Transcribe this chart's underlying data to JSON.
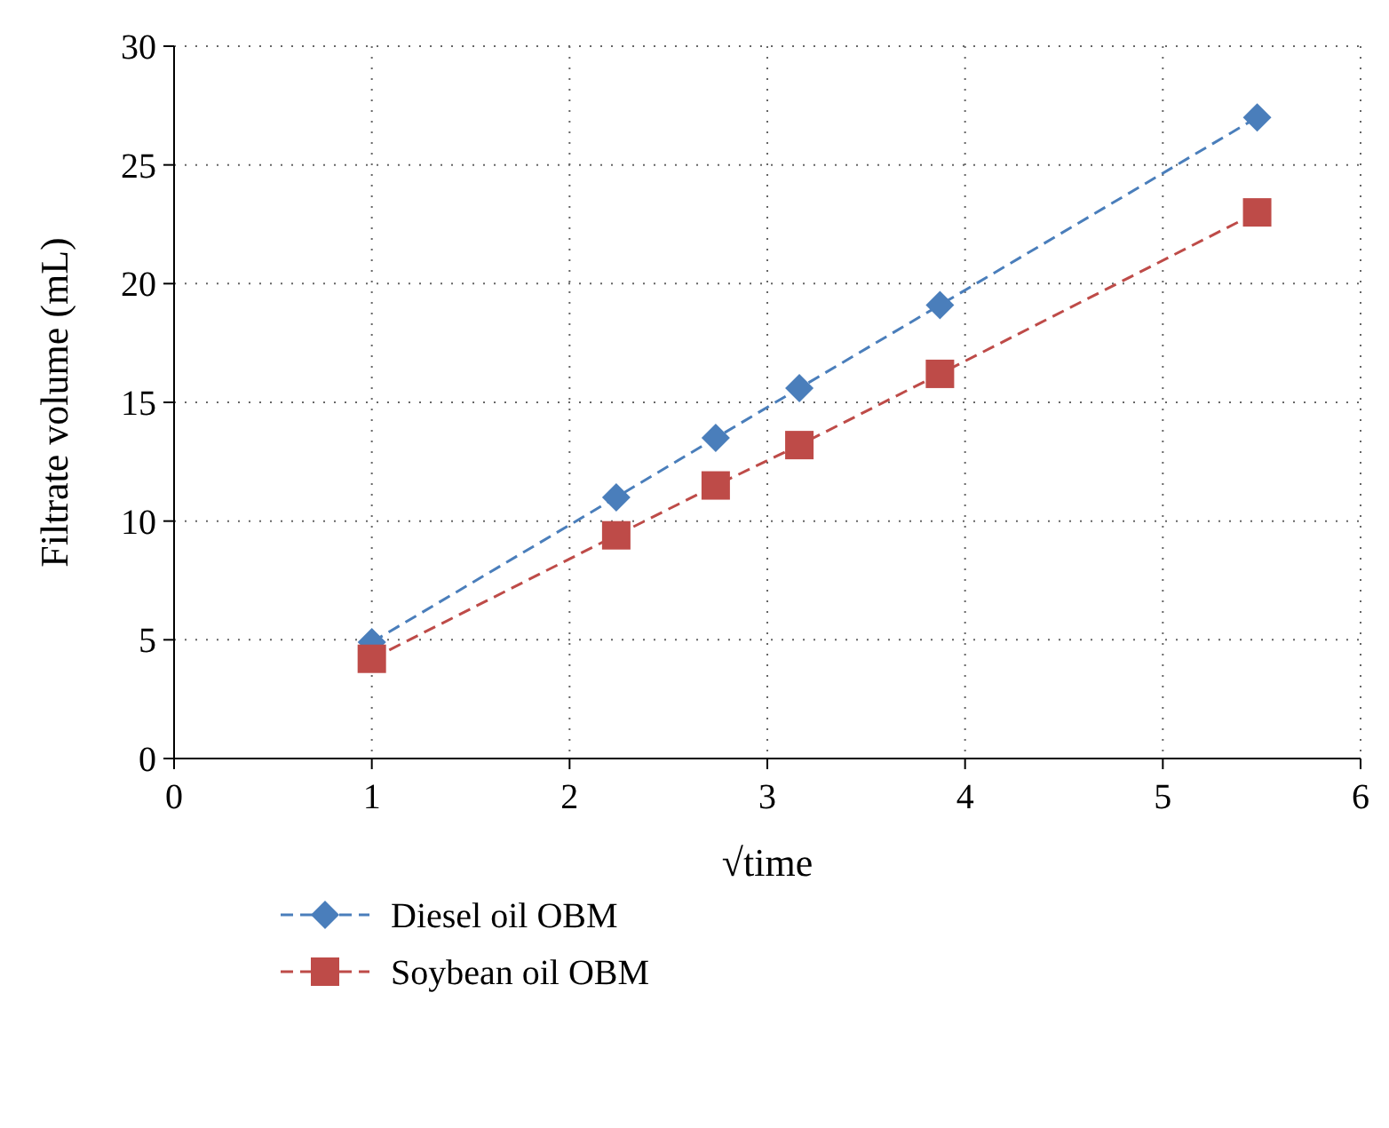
{
  "chart_data": {
    "type": "line",
    "xlabel": "√time",
    "ylabel": "Filtrate volume (mL)",
    "x": [
      1,
      2.236,
      2.739,
      3.162,
      3.873,
      5.477
    ],
    "series": [
      {
        "name": "Diesel oil OBM",
        "color": "#4a7ebb",
        "values": [
          4.9,
          11,
          13.5,
          15.6,
          19.1,
          27
        ],
        "marker": "diamond",
        "line_style": "dashed"
      },
      {
        "name": "Soybean oil OBM",
        "color": "#be4b48",
        "values": [
          4.2,
          9.4,
          11.5,
          13.2,
          16.2,
          23
        ],
        "marker": "square",
        "line_style": "dashed"
      }
    ],
    "xlim": [
      0,
      6
    ],
    "xticks": [
      0,
      1,
      2,
      3,
      4,
      5,
      6
    ],
    "ylim": [
      0,
      30
    ],
    "yticks": [
      0,
      5,
      10,
      15,
      20,
      25,
      30
    ],
    "grid": true,
    "legend": "bottom"
  }
}
